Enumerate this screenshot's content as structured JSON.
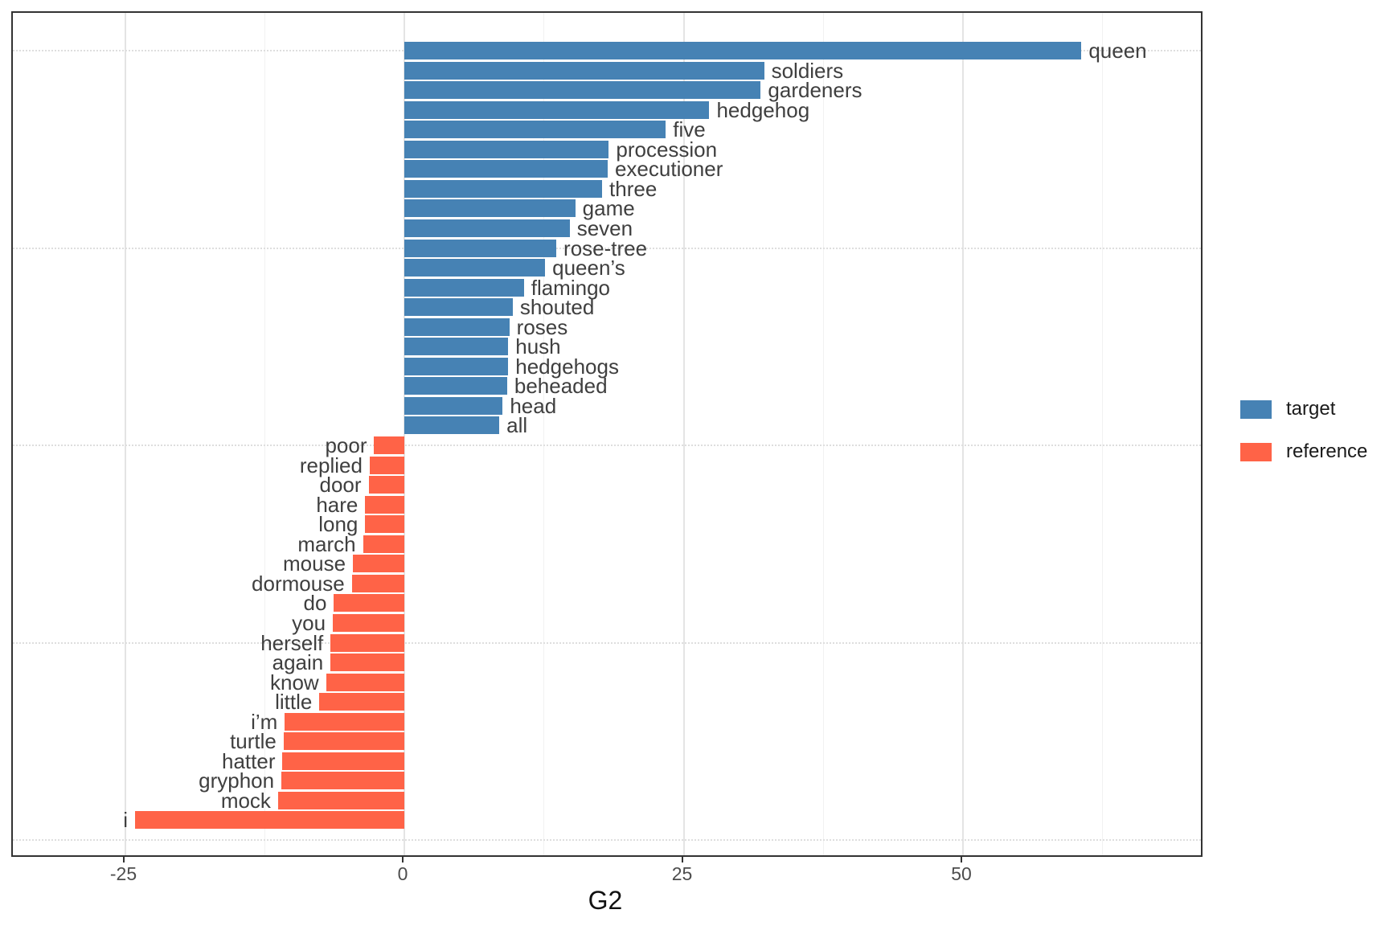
{
  "chart_data": {
    "type": "bar",
    "orientation": "horizontal",
    "title": "",
    "xlabel": "G2",
    "ylabel": "",
    "x_axis": {
      "major_ticks": [
        -25,
        0,
        25,
        50
      ],
      "minor_gridlines": [
        -12.5,
        12.5,
        37.5,
        62.5
      ],
      "range": [
        -35.0,
        71.3
      ]
    },
    "grid": {
      "vertical": "solid",
      "horizontal": "dotted"
    },
    "legend_position": "right",
    "series": [
      {
        "name": "target",
        "color": "#4682B4",
        "categories": [
          "queen",
          "soldiers",
          "gardeners",
          "hedgehog",
          "five",
          "procession",
          "executioner",
          "three",
          "game",
          "seven",
          "rose-tree",
          "queen’s",
          "flamingo",
          "shouted",
          "roses",
          "hush",
          "hedgehogs",
          "beheaded",
          "head",
          "all"
        ],
        "values": [
          60.6,
          32.2,
          31.9,
          27.3,
          23.4,
          18.3,
          18.2,
          17.7,
          15.3,
          14.8,
          13.6,
          12.6,
          10.7,
          9.7,
          9.4,
          9.3,
          9.3,
          9.2,
          8.8,
          8.5
        ]
      },
      {
        "name": "reference",
        "color": "#FF6347",
        "categories": [
          "poor",
          "replied",
          "door",
          "hare",
          "long",
          "march",
          "mouse",
          "dormouse",
          "do",
          "you",
          "herself",
          "again",
          "know",
          "little",
          "i’m",
          "turtle",
          "hatter",
          "gryphon",
          "mock",
          "i"
        ],
        "values": [
          -2.7,
          -3.1,
          -3.2,
          -3.5,
          -3.5,
          -3.7,
          -4.6,
          -4.7,
          -6.3,
          -6.4,
          -6.6,
          -6.6,
          -7.0,
          -7.6,
          -10.7,
          -10.8,
          -10.9,
          -11.0,
          -11.3,
          -24.1
        ]
      }
    ]
  },
  "legend": {
    "items": [
      {
        "label": "target",
        "color": "#4682B4"
      },
      {
        "label": "reference",
        "color": "#FF6347"
      }
    ]
  },
  "axis": {
    "x_title": "G2",
    "tick_labels": [
      "-25",
      "0",
      "25",
      "50"
    ]
  }
}
